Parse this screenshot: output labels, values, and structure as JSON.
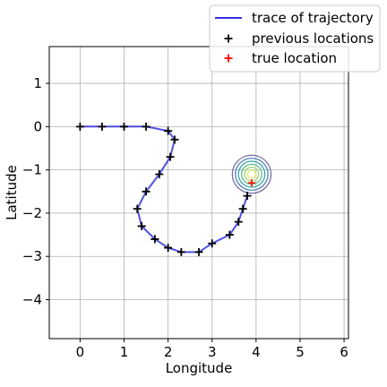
{
  "chart_data": {
    "type": "line",
    "xlabel": "Longitude",
    "ylabel": "Latitude",
    "xlim": [
      -0.7,
      6.1
    ],
    "ylim": [
      -4.9,
      1.85
    ],
    "xticks": [
      0,
      1,
      2,
      3,
      4,
      5,
      6
    ],
    "yticks": [
      1,
      0,
      -1,
      -2,
      -3,
      -4
    ],
    "xtick_labels": [
      "0",
      "1",
      "2",
      "3",
      "4",
      "5",
      "6"
    ],
    "ytick_labels": [
      "1",
      "0",
      "−1",
      "−2",
      "−3",
      "−4"
    ],
    "grid": true,
    "legend_position": "top-right, outside plot",
    "legend": [
      {
        "label": "trace of trajectory",
        "kind": "line",
        "color": "#3333dd"
      },
      {
        "label": "previous locations",
        "kind": "plus",
        "color": "#000000"
      },
      {
        "label": "true location",
        "kind": "plus",
        "color": "#ff0000"
      }
    ],
    "trajectory": {
      "name": "trace of trajectory",
      "color": "#3333dd",
      "x": [
        0,
        0.5,
        1,
        1.5,
        2,
        2.15,
        2.05,
        1.8,
        1.5,
        1.3,
        1.4,
        1.7,
        2,
        2.3,
        2.7,
        3,
        3.4,
        3.6,
        3.7,
        3.8
      ],
      "y": [
        0,
        0,
        0,
        0,
        -0.1,
        -0.3,
        -0.7,
        -1.1,
        -1.5,
        -1.9,
        -2.3,
        -2.6,
        -2.8,
        -2.9,
        -2.9,
        -2.7,
        -2.5,
        -2.2,
        -1.9,
        -1.6
      ]
    },
    "previous_locations": {
      "name": "previous locations",
      "color": "#000000",
      "x": [
        0,
        0.5,
        1,
        1.5,
        2,
        2.15,
        2.05,
        1.8,
        1.5,
        1.3,
        1.4,
        1.7,
        2,
        2.3,
        2.7,
        3,
        3.4,
        3.6,
        3.7,
        3.8
      ],
      "y": [
        0,
        0,
        0,
        0,
        -0.1,
        -0.3,
        -0.7,
        -1.1,
        -1.5,
        -1.9,
        -2.3,
        -2.6,
        -2.8,
        -2.9,
        -2.9,
        -2.7,
        -2.5,
        -2.2,
        -1.9,
        -1.6
      ]
    },
    "true_location": {
      "name": "true location",
      "color": "#ff0000",
      "x": 3.9,
      "y": -1.3
    },
    "density_contours": {
      "center": [
        3.9,
        -1.1
      ],
      "radii": [
        0.44,
        0.37,
        0.3,
        0.23,
        0.16,
        0.09
      ],
      "colors": [
        "#7b6fa3",
        "#4f82b5",
        "#3ea3a8",
        "#5cc08a",
        "#9fd872",
        "#e6ee6a"
      ]
    }
  }
}
